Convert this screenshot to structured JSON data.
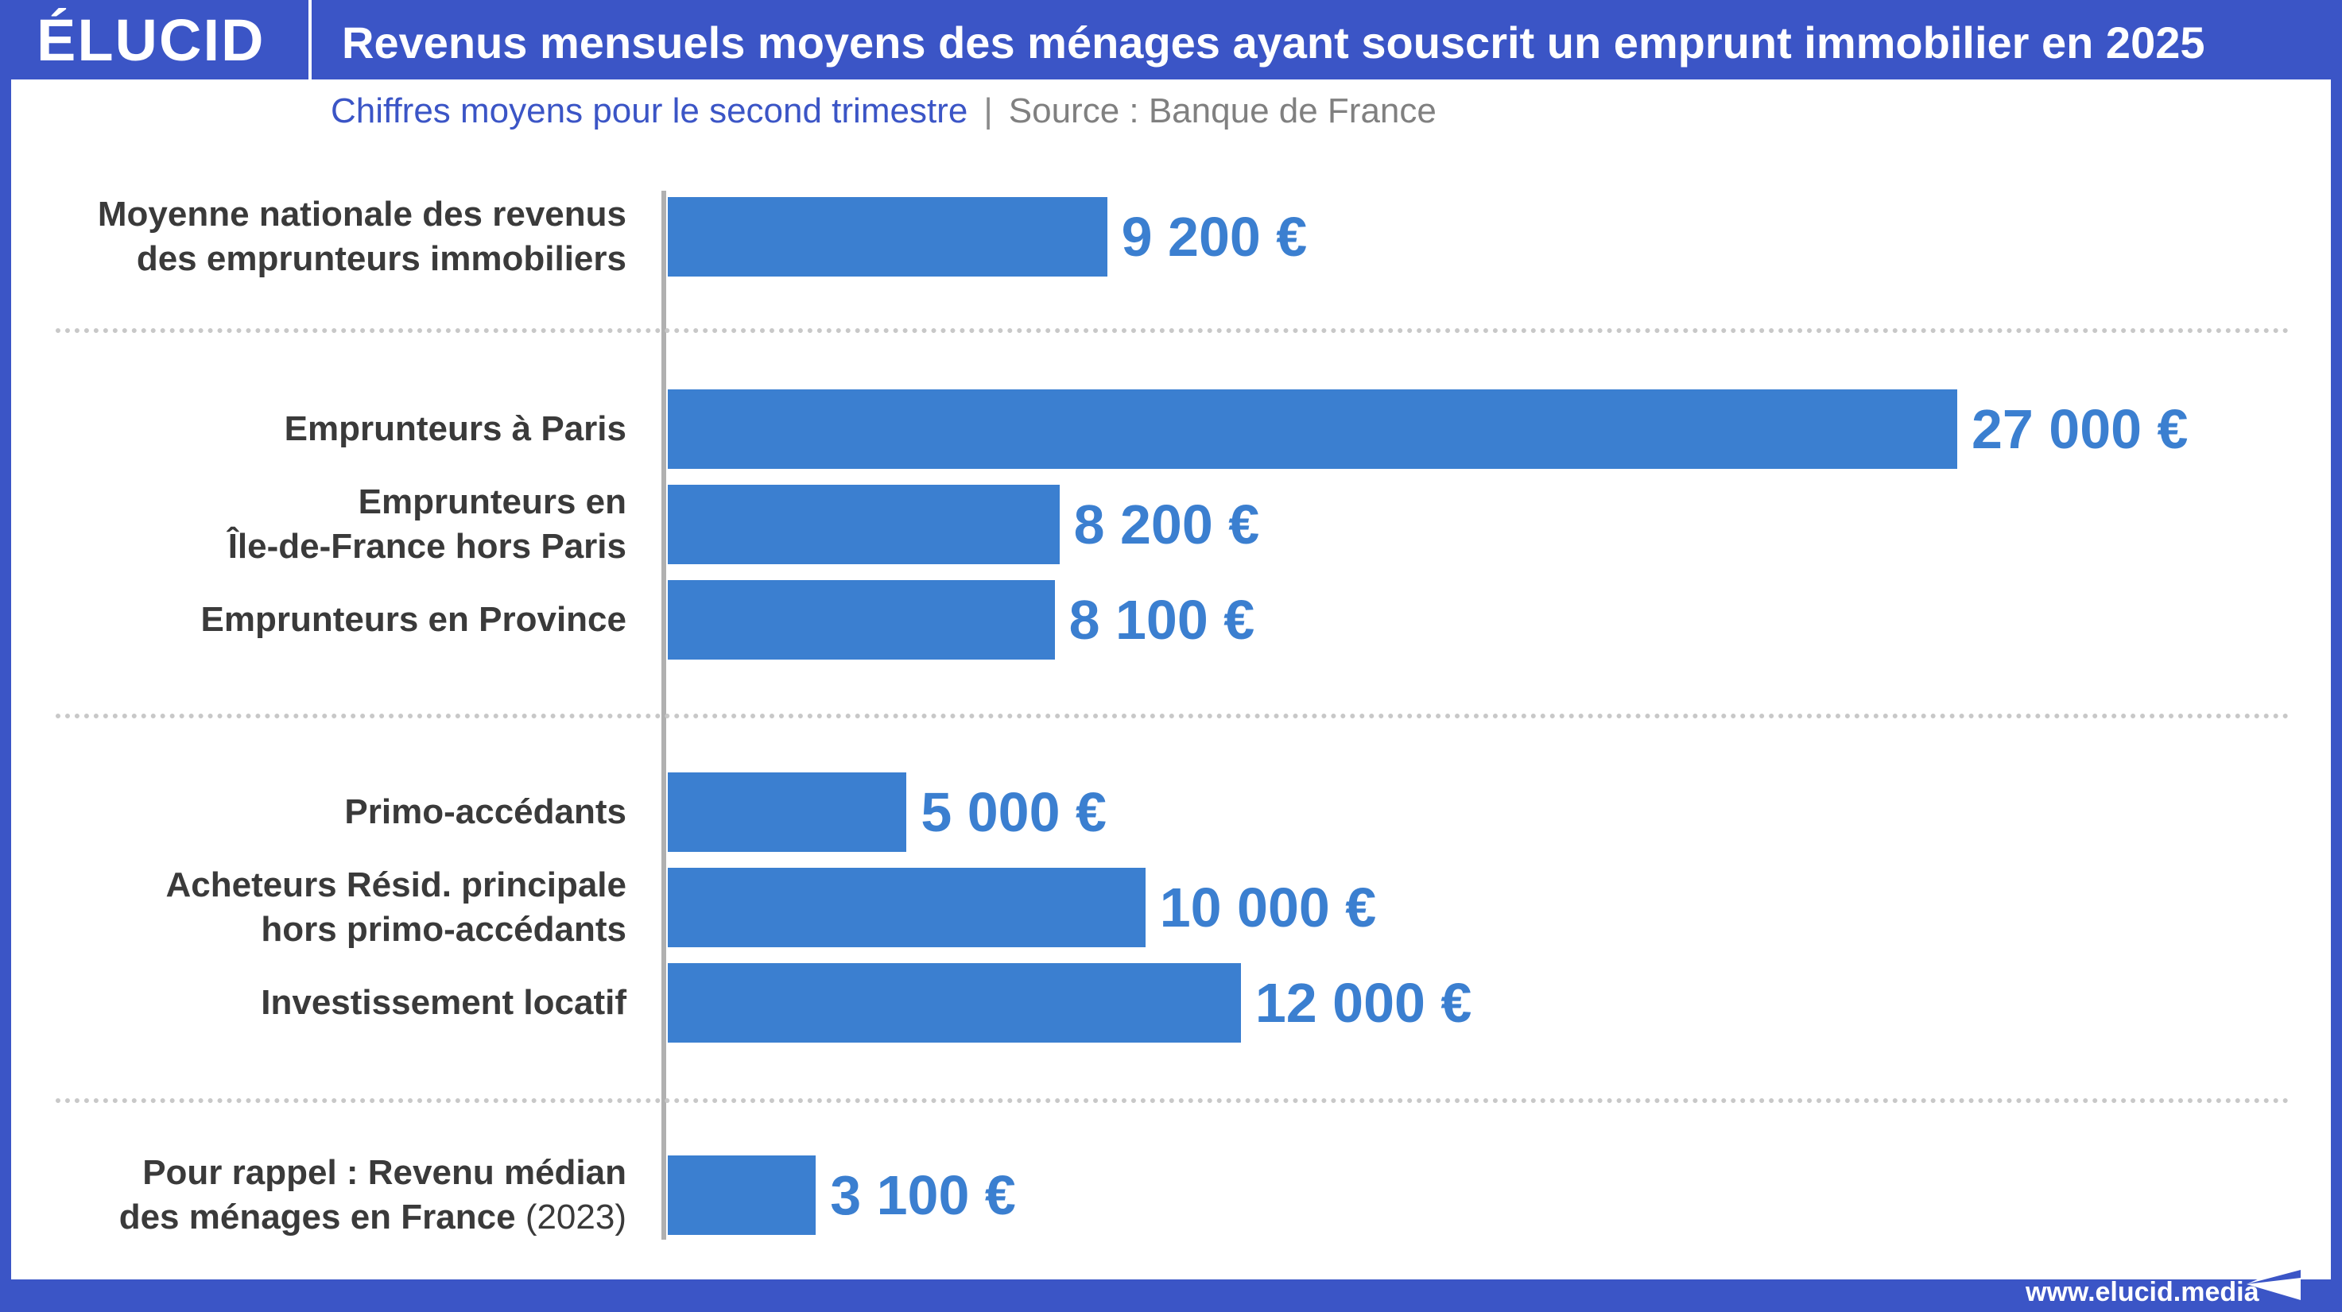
{
  "header": {
    "logo": "ÉLUCID",
    "title": "Revenus mensuels moyens des ménages ayant souscrit un emprunt immobilier en 2025"
  },
  "subtitle": {
    "text": "Chiffres moyens pour le second trimestre",
    "separator": "|",
    "source": "Source : Banque de France"
  },
  "footer": {
    "url": "www.elucid.media",
    "icon": "paper-plane-icon"
  },
  "colors": {
    "header_bg": "#3b55c6",
    "bar": "#3b7fd0",
    "value_text": "#3b7fd0",
    "label_text": "#3a3a3a"
  },
  "chart_data": {
    "type": "bar",
    "orientation": "horizontal",
    "title": "Revenus mensuels moyens des ménages ayant souscrit un emprunt immobilier en 2025",
    "xlim": [
      0,
      27000
    ],
    "grid": false,
    "categories": [
      "Moyenne nationale des revenus des emprunteurs immobiliers",
      "Emprunteurs à Paris",
      "Emprunteurs en Île-de-France hors Paris",
      "Emprunteurs en Province",
      "Primo-accédants",
      "Acheteurs Résid. principale hors primo-accédants",
      "Investissement locatif",
      "Pour rappel : Revenu médian des ménages en France (2023)"
    ],
    "values": [
      9200,
      27000,
      8200,
      8100,
      5000,
      10000,
      12000,
      3100
    ],
    "value_labels": [
      "9 200 €",
      "27 000 €",
      "8 200 €",
      "8 100 €",
      "5 000 €",
      "10 000 €",
      "12 000 €",
      "3 100 €"
    ],
    "label_lines": [
      [
        "Moyenne nationale des revenus",
        "des emprunteurs immobiliers"
      ],
      [
        "Emprunteurs à Paris"
      ],
      [
        "Emprunteurs en",
        "Île-de-France hors Paris"
      ],
      [
        "Emprunteurs en Province"
      ],
      [
        "Primo-accédants"
      ],
      [
        "Acheteurs Résid. principale",
        "hors primo-accédants"
      ],
      [
        "Investissement locatif"
      ],
      [
        "Pour rappel : Revenu médian",
        "des ménages en France",
        "(2023)"
      ]
    ]
  }
}
